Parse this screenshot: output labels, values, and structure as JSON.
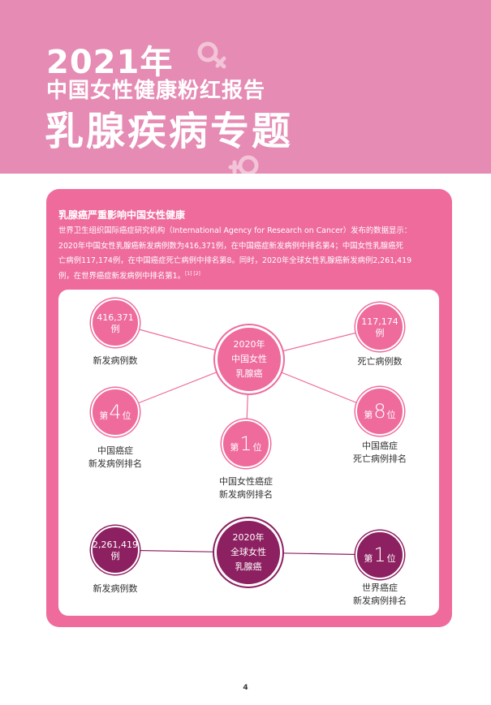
{
  "header": {
    "year": "2021年",
    "subtitle": "中国女性健康粉红报告",
    "title": "乳腺疾病专题"
  },
  "section": {
    "heading": "乳腺癌严重影响中国女性健康",
    "para_line1": "世界卫生组织国际癌症研究机构（International Agency for Research on Cancer）发布的数据显示：",
    "para_line2": "2020年中国女性乳腺癌新发病例数为416,371例，在中国癌症新发病例中排名第4；中国女性乳腺癌死",
    "para_line3": "亡病例117,174例，在中国癌症死亡病例中排名第8。同时，2020年全球女性乳腺癌新发病例2,261,419",
    "para_line4": "例，在世界癌症新发病例中排名第1。",
    "citation": "[1] [2]"
  },
  "china": {
    "center_l1": "2020年",
    "center_l2": "中国女性",
    "center_l3": "乳腺癌",
    "new_cases": {
      "value": "416,371",
      "unit": "例",
      "label": "新发病例数"
    },
    "deaths": {
      "value": "117,174",
      "unit": "例",
      "label": "死亡病例数"
    },
    "rank_new": {
      "prefix": "第",
      "value": "4",
      "suffix": "位",
      "label_l1": "中国癌症",
      "label_l2": "新发病例排名"
    },
    "rank_death": {
      "prefix": "第",
      "value": "8",
      "suffix": "位",
      "label_l1": "中国癌症",
      "label_l2": "死亡病例排名"
    },
    "rank_female": {
      "prefix": "第",
      "value": "1",
      "suffix": "位",
      "label_l1": "中国女性癌症",
      "label_l2": "新发病例排名"
    }
  },
  "global": {
    "center_l1": "2020年",
    "center_l2": "全球女性",
    "center_l3": "乳腺癌",
    "new_cases": {
      "value": "2,261,419",
      "unit": "例",
      "label": "新发病例数"
    },
    "rank": {
      "prefix": "第",
      "value": "1",
      "suffix": "位",
      "label_l1": "世界癌症",
      "label_l2": "新发病例排名"
    }
  },
  "page_number": "4",
  "colors": {
    "header_bg": "#e58bb4",
    "pink": "#ee6b9c",
    "purple": "#8c2060"
  },
  "icons": [
    "female-symbol-icon"
  ]
}
